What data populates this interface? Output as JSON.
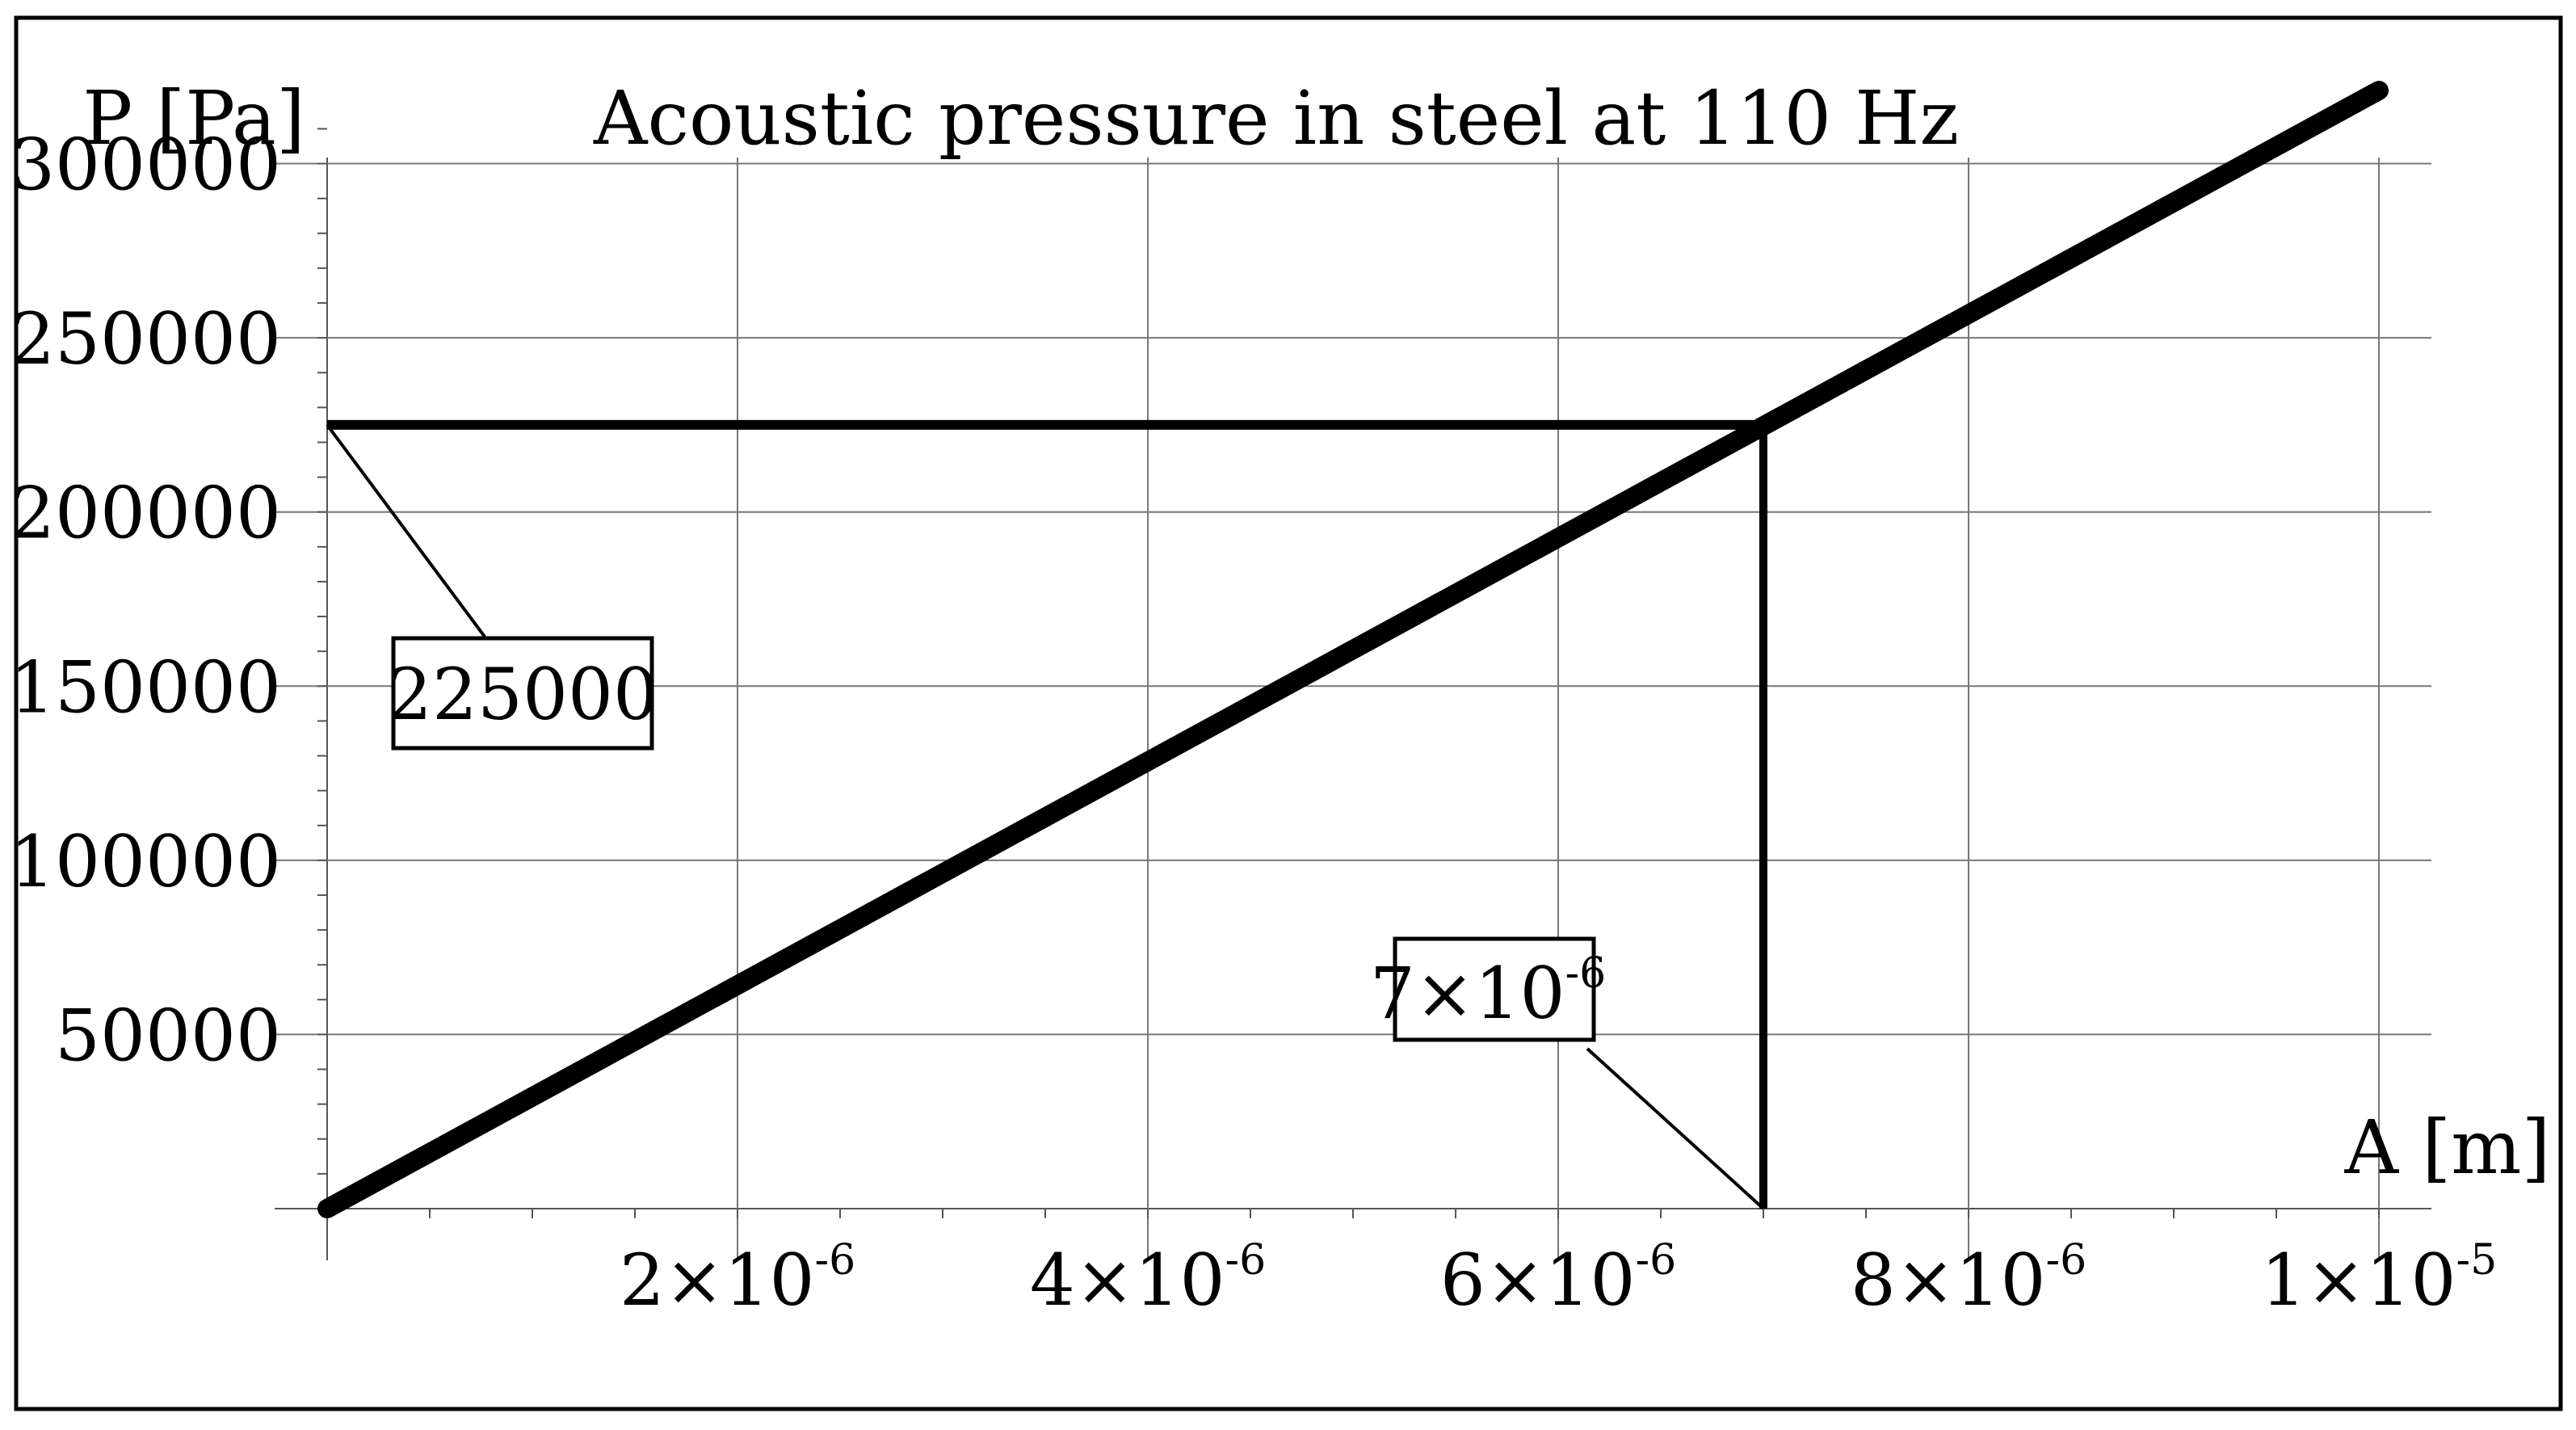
{
  "chart_data": {
    "type": "line",
    "title": "Acoustic pressure in steel at 110 Hz",
    "xlabel": "A [m]",
    "ylabel": "P [Pa]",
    "xlim": [
      0,
      1e-05
    ],
    "ylim": [
      0,
      325000
    ],
    "grid": true,
    "x_ticks": [
      {
        "value": 2e-06,
        "mantissa": "2×10",
        "exponent": "-6"
      },
      {
        "value": 4e-06,
        "mantissa": "4×10",
        "exponent": "-6"
      },
      {
        "value": 6e-06,
        "mantissa": "6×10",
        "exponent": "-6"
      },
      {
        "value": 8e-06,
        "mantissa": "8×10",
        "exponent": "-6"
      },
      {
        "value": 1e-05,
        "mantissa": "1×10",
        "exponent": "-5"
      }
    ],
    "y_ticks": [
      {
        "value": 50000,
        "label": "50000"
      },
      {
        "value": 100000,
        "label": "100000"
      },
      {
        "value": 150000,
        "label": "150000"
      },
      {
        "value": 200000,
        "label": "200000"
      },
      {
        "value": 250000,
        "label": "250000"
      },
      {
        "value": 300000,
        "label": "300000"
      }
    ],
    "series": [
      {
        "x": [
          0,
          1e-05
        ],
        "y": [
          0,
          321000
        ]
      }
    ],
    "annotations": {
      "marker_point": {
        "x": 7e-06,
        "y": 225000
      },
      "y_callout": {
        "mantissa": "225000",
        "exponent": ""
      },
      "x_callout": {
        "mantissa": "7×10",
        "exponent": "-6"
      }
    }
  }
}
